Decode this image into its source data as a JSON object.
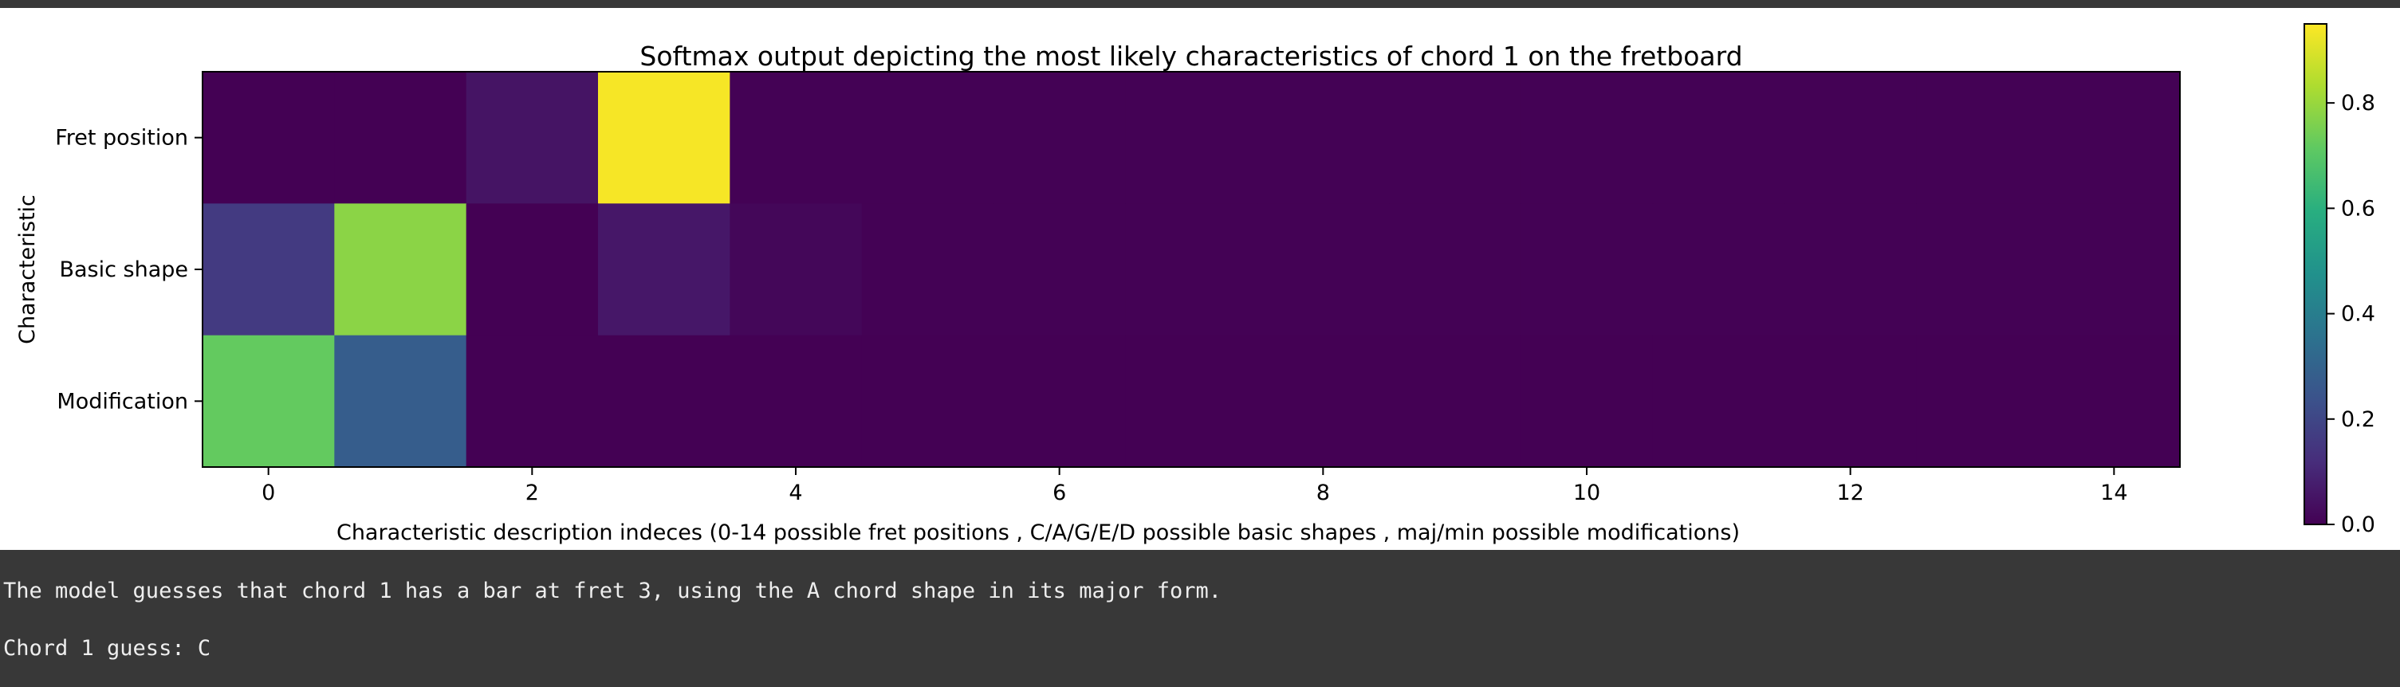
{
  "chart_data": {
    "type": "heatmap",
    "title": "Softmax output depicting the most likely characteristics of chord 1 on the fretboard",
    "xlabel": "Characteristic description indeces (0-14 possible fret positions , C/A/G/E/D possible basic shapes , maj/min possible modifications)",
    "ylabel": "Characteristic",
    "rows": [
      "Fret position",
      "Basic shape",
      "Modification"
    ],
    "x_ticks": [
      "0",
      "2",
      "4",
      "6",
      "8",
      "10",
      "12",
      "14"
    ],
    "x_range": [
      0,
      14
    ],
    "values": [
      [
        0.0,
        0.0,
        0.05,
        0.94,
        0.003,
        0.003,
        0.003,
        0.003,
        0.003,
        0.003,
        0.003,
        0.003,
        0.003,
        0.003,
        0.003
      ],
      [
        0.16,
        0.78,
        0.0,
        0.06,
        0.015,
        0.003,
        0.003,
        0.003,
        0.003,
        0.003,
        0.003,
        0.003,
        0.003,
        0.003,
        0.003
      ],
      [
        0.72,
        0.28,
        0.0,
        0.0,
        0.0,
        0.0,
        0.0,
        0.0,
        0.0,
        0.0,
        0.0,
        0.0,
        0.0,
        0.0,
        0.0
      ]
    ],
    "colormap": "viridis",
    "colorbar": {
      "range": [
        0,
        0.95
      ],
      "ticks": [
        "0.0",
        "0.2",
        "0.4",
        "0.6",
        "0.8"
      ]
    },
    "grid": false
  },
  "output_text": {
    "line1": "The model guesses that chord 1 has a bar at fret 3, using the A chord shape in its major form.",
    "line2": "Chord 1 guess: C"
  },
  "colors": {
    "background": "#383838",
    "figure_background": "#ffffff",
    "text": "#eeeeee"
  }
}
